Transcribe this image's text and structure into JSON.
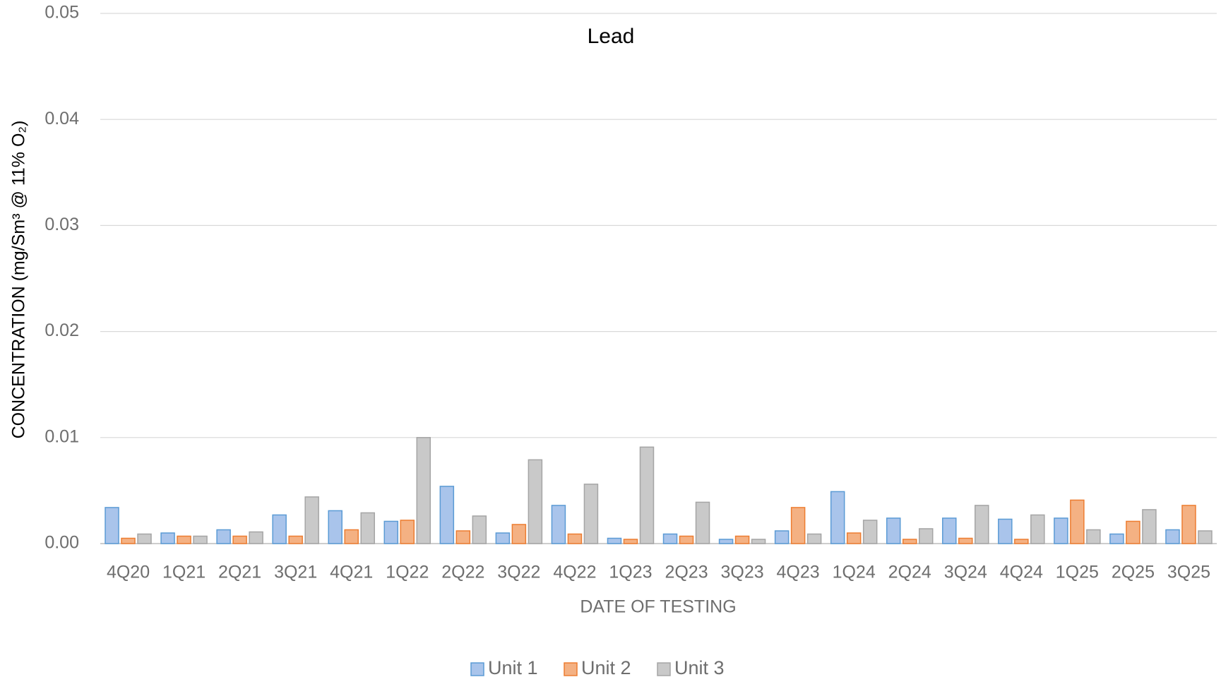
{
  "chart_data": {
    "type": "bar",
    "title": "Lead",
    "xlabel": "DATE OF TESTING",
    "ylabel": "CONCENTRATION (mg/Sm³ @ 11% O₂)",
    "categories": [
      "4Q20",
      "1Q21",
      "2Q21",
      "3Q21",
      "4Q21",
      "1Q22",
      "2Q22",
      "3Q22",
      "4Q22",
      "1Q23",
      "2Q23",
      "3Q23",
      "4Q23",
      "1Q24",
      "2Q24",
      "3Q24",
      "4Q24",
      "1Q25",
      "2Q25",
      "3Q25"
    ],
    "series": [
      {
        "name": "Unit 1",
        "color": "#a9c4eb",
        "edgecolor": "#5b9bd5",
        "values": [
          0.0034,
          0.001,
          0.0013,
          0.0027,
          0.0031,
          0.0021,
          0.0054,
          0.001,
          0.0036,
          0.0005,
          0.0009,
          0.0004,
          0.0012,
          0.0049,
          0.0024,
          0.0024,
          0.0023,
          0.0024,
          0.0009,
          0.0013
        ]
      },
      {
        "name": "Unit 2",
        "color": "#f4b183",
        "edgecolor": "#ed7d31",
        "values": [
          0.0005,
          0.0007,
          0.0007,
          0.0007,
          0.0013,
          0.0022,
          0.0012,
          0.0018,
          0.0009,
          0.0004,
          0.0007,
          0.0007,
          0.0034,
          0.001,
          0.0004,
          0.0005,
          0.0004,
          0.0041,
          0.0021,
          0.0036
        ]
      },
      {
        "name": "Unit 3",
        "color": "#c9c9c9",
        "edgecolor": "#a5a5a5",
        "values": [
          0.0009,
          0.0007,
          0.0011,
          0.0044,
          0.0029,
          0.01,
          0.0026,
          0.0079,
          0.0056,
          0.0091,
          0.0039,
          0.0004,
          0.0009,
          0.0022,
          0.0014,
          0.0036,
          0.0027,
          0.0013,
          0.0032,
          0.0012
        ]
      }
    ],
    "ylim": [
      0,
      0.05
    ],
    "yticks": [
      {
        "value": 0,
        "label": "0.00"
      },
      0.01,
      0.02,
      0.03,
      0.04,
      0.05
    ],
    "grid": true,
    "legend": "bottom"
  }
}
